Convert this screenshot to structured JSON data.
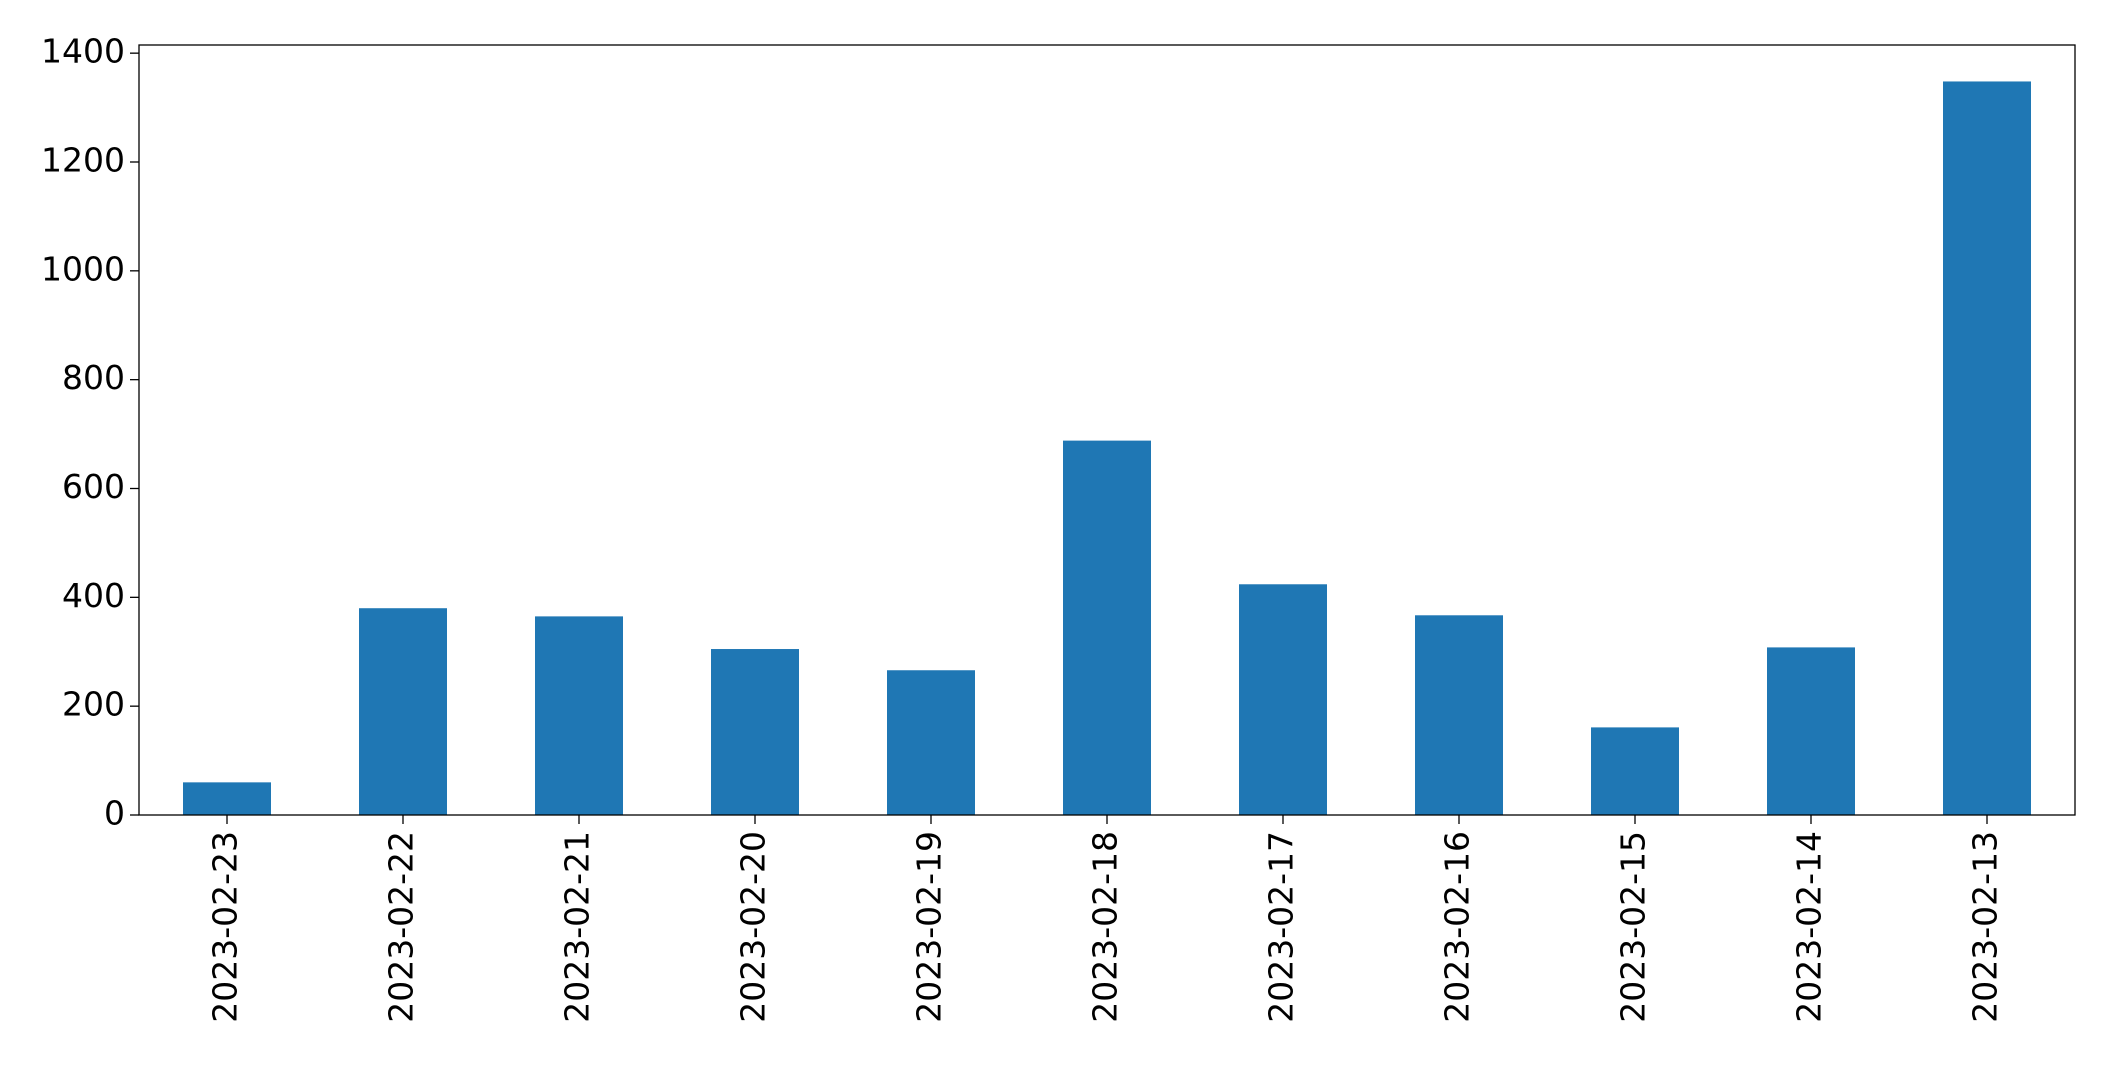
{
  "chart_data": {
    "type": "bar",
    "categories": [
      "2023-02-23",
      "2023-02-22",
      "2023-02-21",
      "2023-02-20",
      "2023-02-19",
      "2023-02-18",
      "2023-02-17",
      "2023-02-16",
      "2023-02-15",
      "2023-02-14",
      "2023-02-13"
    ],
    "values": [
      60,
      380,
      365,
      305,
      266,
      688,
      424,
      367,
      161,
      308,
      1348
    ],
    "color": "#1f77b4",
    "ylim": [
      0,
      1415
    ],
    "yticks": [
      0,
      200,
      400,
      600,
      800,
      1000,
      1200,
      1400
    ],
    "grid": false
  }
}
